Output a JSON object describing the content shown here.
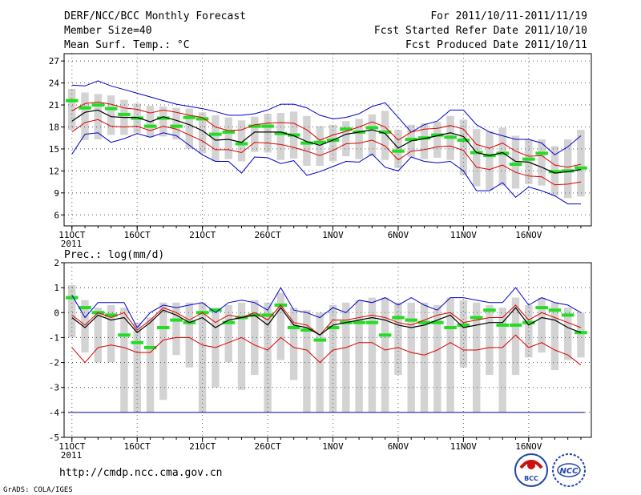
{
  "header": {
    "left_lines": [
      "DERF/NCC/BCC Monthly Forecast",
      "Member Size=40",
      "Mean Surf. Temp.: °C"
    ],
    "right_lines": [
      "For 2011/10/11-2011/11/19",
      "Fcst Started Refer Date 2011/10/10",
      "Fcst Produced Date 2011/10/11"
    ]
  },
  "footer": {
    "url": "http://cmdp.ncc.cma.gov.cn",
    "grads": "GrADS: COLA/IGES",
    "logo_bcc": "BCC",
    "logo_ncc": "NCC"
  },
  "colors": {
    "envelope": "#0000cc",
    "spread": "#dd0000",
    "mean": "#000000",
    "marker": "#22dd22",
    "box": "#d3d3d3",
    "grid": "#555555",
    "floor": "#3333aa"
  },
  "chart_data": [
    {
      "type": "box",
      "title": "Mean Surf. Temp.: °C",
      "ylim": [
        4.5,
        28
      ],
      "yticks": [
        6,
        9,
        12,
        15,
        18,
        21,
        24,
        27
      ],
      "x": [
        1,
        2,
        3,
        4,
        5,
        6,
        7,
        8,
        9,
        10,
        11,
        12,
        13,
        14,
        15,
        16,
        17,
        18,
        19,
        20,
        21,
        22,
        23,
        24,
        25,
        26,
        27,
        28,
        29,
        30,
        31,
        32,
        33,
        34,
        35,
        36,
        37,
        38,
        39,
        40
      ],
      "xlim": [
        0.4,
        40.8
      ],
      "xtick_positions": [
        1,
        6,
        11,
        16,
        21,
        26,
        31,
        36
      ],
      "xtick_labels": [
        "11OCT",
        "16OCT",
        "21OCT",
        "26OCT",
        "1NOV",
        "6NOV",
        "11NOV",
        "16NOV"
      ],
      "year_label": "2011",
      "series": [
        {
          "name": "max",
          "values": [
            23.7,
            23.6,
            24.3,
            23.6,
            23.1,
            22.6,
            22.1,
            21.6,
            21.1,
            20.8,
            20.5,
            20.1,
            19.6,
            19.6,
            19.8,
            20.3,
            21.1,
            21.1,
            20.6,
            19.6,
            19.1,
            19.3,
            19.8,
            20.8,
            21.3,
            19.3,
            17.3,
            18.3,
            18.8,
            20.3,
            20.3,
            18.3,
            17.3,
            16.8,
            16.3,
            16.3,
            15.8,
            14.2,
            15.3,
            16.8
          ]
        },
        {
          "name": "p90",
          "values": [
            20.2,
            21.2,
            21.4,
            21.1,
            20.6,
            20.4,
            19.9,
            20.3,
            20.0,
            19.6,
            19.3,
            18.0,
            17.5,
            17.6,
            18.3,
            18.5,
            18.6,
            18.5,
            17.6,
            16.2,
            16.9,
            17.4,
            18.0,
            18.7,
            18.0,
            16.2,
            17.3,
            17.7,
            17.8,
            18.2,
            17.7,
            15.6,
            15.1,
            15.8,
            14.7,
            14.0,
            14.1,
            12.8,
            12.5,
            12.9
          ]
        },
        {
          "name": "mean",
          "values": [
            18.8,
            20.0,
            20.3,
            19.4,
            19.3,
            19.3,
            18.7,
            19.4,
            18.9,
            18.3,
            17.5,
            16.2,
            16.3,
            15.9,
            17.3,
            17.3,
            17.3,
            16.8,
            16.0,
            15.5,
            16.2,
            17.0,
            17.3,
            17.6,
            17.1,
            15.1,
            16.1,
            16.4,
            16.8,
            17.2,
            16.7,
            14.5,
            14.1,
            14.5,
            13.3,
            13.2,
            12.5,
            11.7,
            11.9,
            12.2
          ]
        },
        {
          "name": "p10",
          "values": [
            17.3,
            18.6,
            19.0,
            18.1,
            18.0,
            18.1,
            17.5,
            18.1,
            17.7,
            16.9,
            16.1,
            14.9,
            14.9,
            14.5,
            15.9,
            15.8,
            15.6,
            15.2,
            14.7,
            14.1,
            14.8,
            15.7,
            15.8,
            16.2,
            15.4,
            13.5,
            14.7,
            14.9,
            15.3,
            15.4,
            14.8,
            12.5,
            12.2,
            12.8,
            11.8,
            11.3,
            11.2,
            10.1,
            10.2,
            10.5
          ]
        },
        {
          "name": "min",
          "values": [
            14.3,
            17.0,
            17.2,
            15.9,
            16.4,
            17.1,
            16.6,
            17.2,
            16.8,
            15.5,
            14.2,
            13.3,
            13.3,
            11.7,
            13.9,
            13.8,
            13.0,
            13.4,
            11.4,
            11.9,
            12.6,
            13.3,
            13.2,
            14.3,
            12.5,
            12.0,
            13.9,
            13.3,
            13.1,
            13.3,
            12.0,
            9.3,
            9.3,
            10.4,
            8.4,
            9.8,
            9.3,
            8.6,
            7.5,
            7.5
          ]
        },
        {
          "name": "obs",
          "values": [
            21.6,
            20.6,
            21.0,
            20.5,
            19.7,
            19.2,
            18.1,
            19.2,
            18.1,
            19.3,
            19.1,
            17.0,
            17.3,
            15.7,
            18.1,
            18.1,
            17.1,
            16.9,
            15.8,
            15.9,
            16.2,
            17.7,
            17.3,
            17.9,
            17.3,
            14.7,
            16.3,
            16.5,
            16.9,
            16.6,
            16.2,
            14.5,
            14.1,
            14.4,
            12.9,
            13.6,
            14.4,
            11.9,
            12.0,
            12.4
          ]
        },
        {
          "name": "box_high",
          "values": [
            23.2,
            22.7,
            22.5,
            22.3,
            21.7,
            21.2,
            20.9,
            20.8,
            20.6,
            20.5,
            20.0,
            19.6,
            19.3,
            18.9,
            19.4,
            19.8,
            19.9,
            20.1,
            19.5,
            18.1,
            18.3,
            18.8,
            19.1,
            19.7,
            20.2,
            17.6,
            18.3,
            18.5,
            18.7,
            19.5,
            19.0,
            17.7,
            17.4,
            17.9,
            16.8,
            16.3,
            16.3,
            15.4,
            16.3,
            17.6
          ]
        },
        {
          "name": "box_low",
          "values": [
            17.6,
            16.2,
            16.3,
            16.9,
            16.9,
            17.2,
            16.6,
            16.7,
            16.3,
            15.0,
            14.4,
            13.3,
            13.6,
            13.3,
            14.6,
            14.5,
            13.5,
            13.7,
            12.7,
            12.7,
            13.3,
            14.0,
            13.6,
            14.0,
            13.5,
            12.4,
            13.9,
            13.6,
            13.8,
            13.5,
            11.4,
            9.9,
            9.4,
            10.0,
            9.6,
            10.2,
            10.0,
            8.6,
            8.3,
            8.5
          ]
        }
      ]
    },
    {
      "type": "box",
      "title": "Prec.: log(mm/d)",
      "ylim": [
        -5,
        2
      ],
      "yticks": [
        -5,
        -4,
        -3,
        -2,
        -1,
        0,
        1,
        2
      ],
      "x": [
        1,
        2,
        3,
        4,
        5,
        6,
        7,
        8,
        9,
        10,
        11,
        12,
        13,
        14,
        15,
        16,
        17,
        18,
        19,
        20,
        21,
        22,
        23,
        24,
        25,
        26,
        27,
        28,
        29,
        30,
        31,
        32,
        33,
        34,
        35,
        36,
        37,
        38,
        39,
        40
      ],
      "xlim": [
        0.4,
        40.8
      ],
      "xtick_positions": [
        1,
        6,
        11,
        16,
        21,
        26,
        31,
        36
      ],
      "xtick_labels": [
        "11OCT",
        "16OCT",
        "21OCT",
        "26OCT",
        "1NOV",
        "6NOV",
        "11NOV",
        "16NOV"
      ],
      "year_label": "2011",
      "floor_value": -4,
      "series": [
        {
          "name": "max",
          "values": [
            0.7,
            -0.2,
            0.4,
            0.4,
            0.4,
            -0.6,
            0.0,
            0.3,
            0.2,
            0.3,
            0.4,
            0.0,
            0.4,
            0.5,
            0.4,
            0.1,
            1.0,
            0.1,
            0.0,
            -0.2,
            0.2,
            0.0,
            0.5,
            0.4,
            0.6,
            0.3,
            0.6,
            0.3,
            0.1,
            0.6,
            0.6,
            0.5,
            0.4,
            0.4,
            1.0,
            0.3,
            0.6,
            0.4,
            0.3,
            0.0
          ]
        },
        {
          "name": "p90",
          "values": [
            -0.1,
            -0.5,
            0.0,
            -0.2,
            0.0,
            -0.7,
            -0.3,
            0.2,
            0.0,
            -0.3,
            0.0,
            -0.4,
            -0.1,
            -0.2,
            0.0,
            -0.3,
            0.3,
            -0.4,
            -0.5,
            -0.9,
            -0.3,
            -0.3,
            -0.2,
            -0.1,
            -0.2,
            -0.4,
            -0.5,
            -0.3,
            -0.1,
            0.0,
            -0.4,
            -0.3,
            -0.2,
            -0.2,
            0.3,
            -0.3,
            0.0,
            -0.2,
            -0.4,
            -0.6
          ]
        },
        {
          "name": "mean",
          "values": [
            -0.2,
            -0.6,
            -0.1,
            -0.3,
            -0.2,
            -0.8,
            -0.4,
            0.1,
            -0.1,
            -0.4,
            -0.2,
            -0.6,
            -0.3,
            -0.2,
            -0.1,
            -0.5,
            0.2,
            -0.5,
            -0.6,
            -0.9,
            -0.5,
            -0.4,
            -0.3,
            -0.2,
            -0.3,
            -0.5,
            -0.6,
            -0.5,
            -0.3,
            -0.1,
            -0.6,
            -0.5,
            -0.4,
            -0.4,
            0.2,
            -0.5,
            -0.2,
            -0.3,
            -0.6,
            -0.8
          ]
        },
        {
          "name": "p10",
          "values": [
            -1.4,
            -2.0,
            -1.4,
            -1.3,
            -1.4,
            -1.6,
            -1.6,
            -1.1,
            -1.0,
            -1.0,
            -1.3,
            -1.4,
            -1.2,
            -1.0,
            -1.3,
            -1.5,
            -1.0,
            -1.4,
            -1.5,
            -2.0,
            -1.5,
            -1.4,
            -1.2,
            -1.2,
            -1.5,
            -1.4,
            -1.6,
            -1.7,
            -1.5,
            -1.2,
            -1.5,
            -1.5,
            -1.4,
            -1.4,
            -0.9,
            -1.4,
            -1.2,
            -1.5,
            -1.7,
            -2.1
          ]
        },
        {
          "name": "obs",
          "values": [
            0.6,
            0.2,
            0.0,
            -0.1,
            -0.9,
            -1.2,
            -1.4,
            -0.6,
            -0.3,
            -0.4,
            0.0,
            0.1,
            -0.4,
            -0.2,
            -0.1,
            -0.1,
            0.3,
            -0.6,
            -0.7,
            -1.1,
            -0.6,
            -0.4,
            -0.4,
            -0.4,
            -0.9,
            -0.2,
            -0.3,
            -0.4,
            -0.4,
            -0.6,
            -0.5,
            -0.2,
            0.1,
            -0.5,
            -0.5,
            -0.4,
            0.2,
            0.1,
            -0.1,
            -0.8
          ]
        },
        {
          "name": "box_high",
          "values": [
            1.1,
            0.5,
            0.2,
            0.3,
            0.2,
            -0.4,
            -0.2,
            0.4,
            0.4,
            0.4,
            0.4,
            0.2,
            0.3,
            0.4,
            0.5,
            0.4,
            0.8,
            0.2,
            0.1,
            0.0,
            0.3,
            0.4,
            0.5,
            0.6,
            0.6,
            0.4,
            0.4,
            0.4,
            0.3,
            0.6,
            0.5,
            0.4,
            0.3,
            0.2,
            0.6,
            0.3,
            0.6,
            0.4,
            0.2,
            0.0
          ]
        },
        {
          "name": "box_low",
          "values": [
            -1.0,
            -1.6,
            -2.0,
            -2.0,
            -4.0,
            -4.0,
            -4.0,
            -3.5,
            -1.7,
            -2.2,
            -4.0,
            -3.0,
            -2.0,
            -3.1,
            -2.5,
            -4.0,
            -1.9,
            -2.7,
            -4.0,
            -4.0,
            -4.0,
            -4.0,
            -4.0,
            -4.0,
            -4.0,
            -2.5,
            -4.0,
            -4.0,
            -4.0,
            -4.0,
            -2.2,
            -4.0,
            -2.5,
            -4.0,
            -2.5,
            -1.8,
            -1.6,
            -2.3,
            -1.9,
            -1.8
          ]
        }
      ]
    }
  ]
}
